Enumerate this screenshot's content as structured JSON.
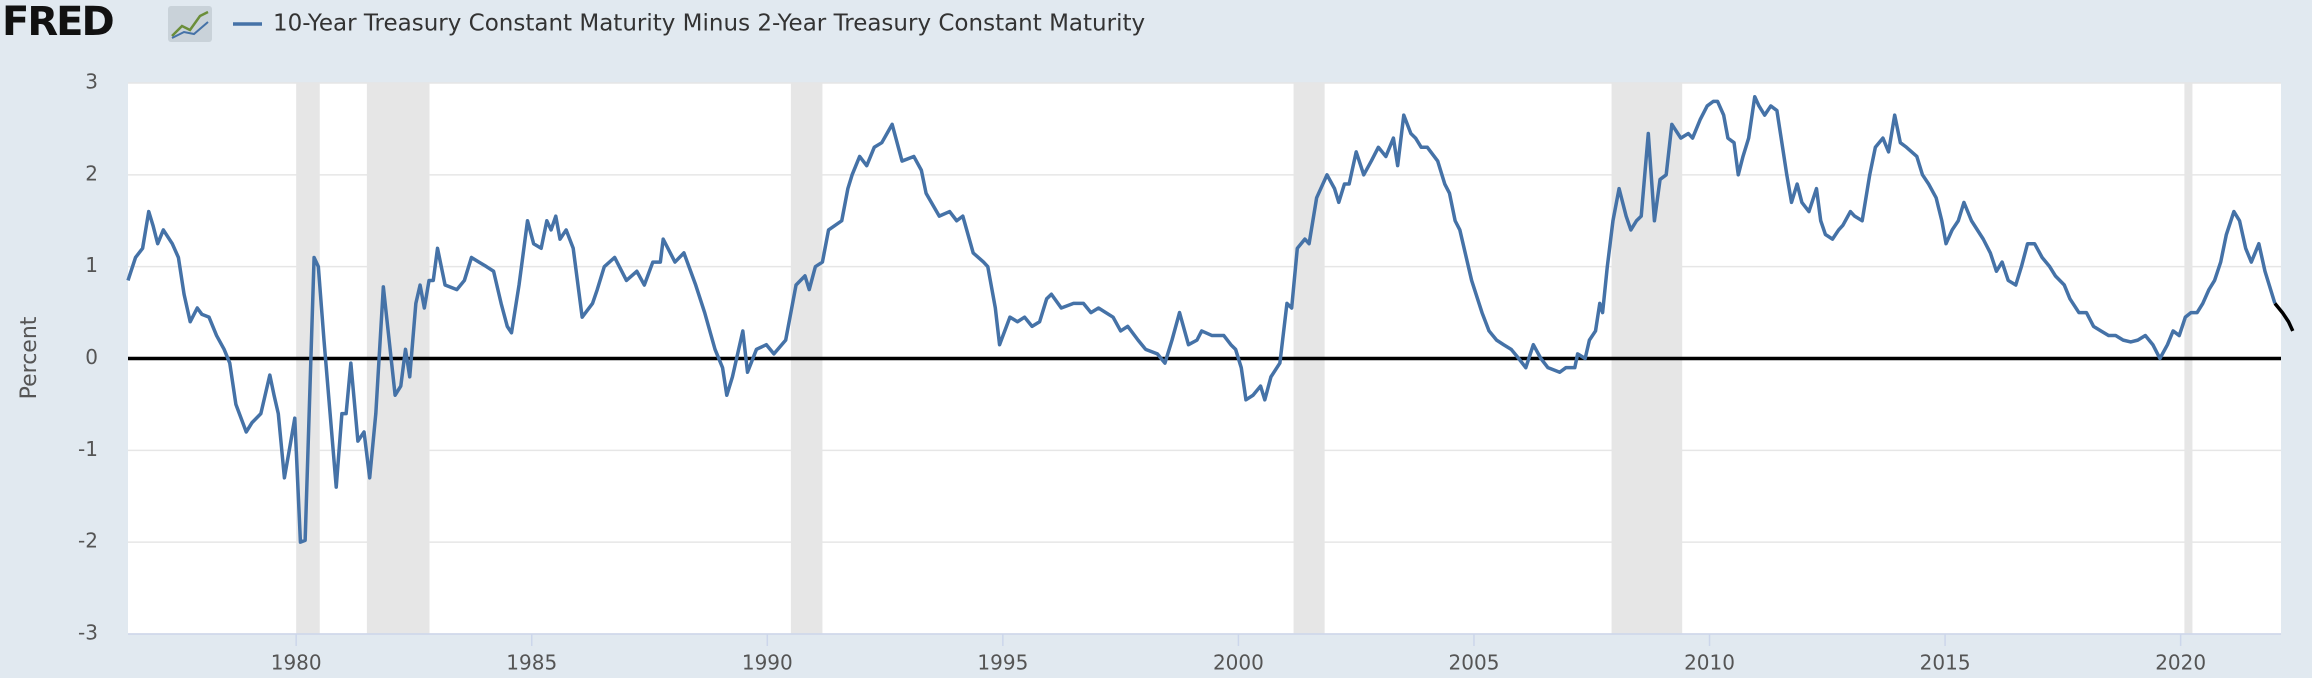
{
  "chart_data": {
    "type": "line",
    "logo": "FRED",
    "ylabel": "Percent",
    "xlim": [
      1976.43,
      2022.13
    ],
    "xticks": [
      1980,
      1985,
      1990,
      1995,
      2000,
      2005,
      2010,
      2015,
      2020
    ],
    "ylim": [
      -3,
      3
    ],
    "yticks": [
      -3,
      -2,
      -1,
      0,
      1,
      2,
      3
    ],
    "grid": true,
    "zero_line": true,
    "recessions": [
      [
        1980.0,
        1980.5
      ],
      [
        1981.5,
        1982.83
      ],
      [
        1990.5,
        1991.17
      ],
      [
        2001.17,
        2001.83
      ],
      [
        2007.92,
        2009.42
      ],
      [
        2020.08,
        2020.25
      ]
    ],
    "series": [
      {
        "name": "10-Year Treasury Constant Maturity Minus 2-Year Treasury Constant Maturity",
        "color": "#4572a7",
        "x": [
          1976.43,
          1976.59,
          1976.74,
          1976.87,
          1976.96,
          1977.06,
          1977.18,
          1977.37,
          1977.5,
          1977.62,
          1977.75,
          1977.9,
          1978.0,
          1978.15,
          1978.31,
          1978.47,
          1978.59,
          1978.72,
          1978.94,
          1979.06,
          1979.25,
          1979.44,
          1979.53,
          1979.62,
          1979.75,
          1979.87,
          1979.97,
          1980.09,
          1980.19,
          1980.38,
          1980.47,
          1980.59,
          1980.85,
          1980.97,
          1981.06,
          1981.16,
          1981.31,
          1981.44,
          1981.56,
          1981.69,
          1981.85,
          1982.1,
          1982.22,
          1982.32,
          1982.41,
          1982.54,
          1982.63,
          1982.72,
          1982.82,
          1982.91,
          1983.0,
          1983.16,
          1983.41,
          1983.57,
          1983.72,
          1983.88,
          1984.04,
          1984.19,
          1984.35,
          1984.48,
          1984.57,
          1984.73,
          1984.91,
          1985.04,
          1985.2,
          1985.32,
          1985.41,
          1985.51,
          1985.6,
          1985.73,
          1985.88,
          1986.07,
          1986.29,
          1986.39,
          1986.54,
          1986.76,
          1987.01,
          1987.23,
          1987.39,
          1987.57,
          1987.73,
          1987.79,
          1988.04,
          1988.23,
          1988.48,
          1988.67,
          1988.89,
          1989.05,
          1989.14,
          1989.26,
          1989.48,
          1989.58,
          1989.77,
          1989.98,
          1990.14,
          1990.39,
          1990.61,
          1990.8,
          1990.89,
          1991.02,
          1991.17,
          1991.3,
          1991.58,
          1991.71,
          1991.8,
          1991.96,
          1992.11,
          1992.27,
          1992.43,
          1992.65,
          1992.86,
          1993.11,
          1993.27,
          1993.37,
          1993.65,
          1993.87,
          1994.02,
          1994.15,
          1994.37,
          1994.59,
          1994.68,
          1994.84,
          1994.93,
          1995.15,
          1995.31,
          1995.46,
          1995.62,
          1995.78,
          1995.93,
          1996.03,
          1996.24,
          1996.5,
          1996.71,
          1996.87,
          1997.03,
          1997.34,
          1997.5,
          1997.65,
          1997.87,
          1998.03,
          1998.28,
          1998.44,
          1998.59,
          1998.75,
          1998.94,
          1999.12,
          1999.22,
          1999.44,
          1999.69,
          1999.84,
          1999.94,
          2000.06,
          2000.16,
          2000.31,
          2000.47,
          2000.56,
          2000.69,
          2000.88,
          2001.03,
          2001.13,
          2001.25,
          2001.41,
          2001.5,
          2001.66,
          2001.88,
          2002.04,
          2002.13,
          2002.25,
          2002.35,
          2002.5,
          2002.66,
          2002.82,
          2002.97,
          2003.13,
          2003.29,
          2003.38,
          2003.51,
          2003.66,
          2003.76,
          2003.88,
          2004.01,
          2004.23,
          2004.38,
          2004.48,
          2004.6,
          2004.7,
          2004.95,
          2005.17,
          2005.32,
          2005.48,
          2005.63,
          2005.79,
          2005.95,
          2006.1,
          2006.26,
          2006.42,
          2006.57,
          2006.82,
          2006.95,
          2007.14,
          2007.2,
          2007.36,
          2007.45,
          2007.58,
          2007.67,
          2007.73,
          2007.83,
          2007.95,
          2008.08,
          2008.23,
          2008.33,
          2008.45,
          2008.55,
          2008.7,
          2008.83,
          2008.95,
          2009.08,
          2009.2,
          2009.39,
          2009.55,
          2009.64,
          2009.8,
          2009.95,
          2010.08,
          2010.17,
          2010.3,
          2010.39,
          2010.52,
          2010.61,
          2010.71,
          2010.83,
          2010.96,
          2011.05,
          2011.17,
          2011.3,
          2011.43,
          2011.55,
          2011.64,
          2011.74,
          2011.86,
          2011.96,
          2012.11,
          2012.27,
          2012.36,
          2012.46,
          2012.61,
          2012.74,
          2012.83,
          2012.99,
          2013.08,
          2013.24,
          2013.4,
          2013.52,
          2013.68,
          2013.8,
          2013.93,
          2014.05,
          2014.18,
          2014.4,
          2014.52,
          2014.65,
          2014.81,
          2014.93,
          2015.02,
          2015.15,
          2015.28,
          2015.4,
          2015.56,
          2015.81,
          2015.96,
          2016.09,
          2016.21,
          2016.34,
          2016.5,
          2016.62,
          2016.75,
          2016.9,
          2017.06,
          2017.22,
          2017.34,
          2017.53,
          2017.65,
          2017.84,
          2018.0,
          2018.15,
          2018.31,
          2018.47,
          2018.62,
          2018.78,
          2018.94,
          2019.09,
          2019.25,
          2019.41,
          2019.56,
          2019.72,
          2019.84,
          2019.97,
          2020.1,
          2020.22,
          2020.35,
          2020.47,
          2020.6,
          2020.72,
          2020.85,
          2020.97,
          2021.13,
          2021.25,
          2021.38,
          2021.5,
          2021.66,
          2021.79,
          2021.91,
          2022.0
        ],
        "values": [
          0.85,
          1.1,
          1.2,
          1.6,
          1.45,
          1.25,
          1.4,
          1.25,
          1.1,
          0.7,
          0.4,
          0.55,
          0.48,
          0.45,
          0.25,
          0.1,
          -0.05,
          -0.5,
          -0.8,
          -0.7,
          -0.6,
          -0.18,
          -0.4,
          -0.6,
          -1.3,
          -0.95,
          -0.65,
          -2.0,
          -1.98,
          1.1,
          1.0,
          0.2,
          -1.4,
          -0.6,
          -0.6,
          -0.05,
          -0.9,
          -0.8,
          -1.3,
          -0.6,
          0.78,
          -0.4,
          -0.3,
          0.1,
          -0.2,
          0.6,
          0.8,
          0.55,
          0.85,
          0.85,
          1.2,
          0.8,
          0.75,
          0.85,
          1.1,
          1.05,
          1.0,
          0.95,
          0.6,
          0.35,
          0.28,
          0.8,
          1.5,
          1.25,
          1.2,
          1.5,
          1.4,
          1.55,
          1.3,
          1.4,
          1.2,
          0.45,
          0.6,
          0.75,
          1.0,
          1.1,
          0.85,
          0.95,
          0.8,
          1.05,
          1.05,
          1.3,
          1.05,
          1.15,
          0.8,
          0.5,
          0.1,
          -0.1,
          -0.4,
          -0.2,
          0.3,
          -0.15,
          0.1,
          0.15,
          0.05,
          0.2,
          0.8,
          0.9,
          0.75,
          1.0,
          1.05,
          1.4,
          1.5,
          1.85,
          2.0,
          2.2,
          2.1,
          2.3,
          2.35,
          2.55,
          2.15,
          2.2,
          2.05,
          1.8,
          1.55,
          1.6,
          1.5,
          1.55,
          1.15,
          1.05,
          1.0,
          0.55,
          0.15,
          0.45,
          0.4,
          0.45,
          0.35,
          0.4,
          0.65,
          0.7,
          0.55,
          0.6,
          0.6,
          0.5,
          0.55,
          0.45,
          0.3,
          0.35,
          0.2,
          0.1,
          0.05,
          -0.05,
          0.2,
          0.5,
          0.15,
          0.2,
          0.3,
          0.25,
          0.25,
          0.15,
          0.1,
          -0.1,
          -0.45,
          -0.4,
          -0.3,
          -0.45,
          -0.2,
          -0.05,
          0.6,
          0.55,
          1.2,
          1.3,
          1.25,
          1.75,
          2.0,
          1.85,
          1.7,
          1.9,
          1.9,
          2.25,
          2.0,
          2.15,
          2.3,
          2.2,
          2.4,
          2.1,
          2.65,
          2.45,
          2.4,
          2.3,
          2.3,
          2.15,
          1.9,
          1.8,
          1.5,
          1.4,
          0.85,
          0.5,
          0.3,
          0.2,
          0.15,
          0.1,
          0.0,
          -0.1,
          0.15,
          0.0,
          -0.1,
          -0.15,
          -0.1,
          -0.1,
          0.05,
          0.0,
          0.2,
          0.3,
          0.6,
          0.5,
          1.0,
          1.5,
          1.85,
          1.55,
          1.4,
          1.5,
          1.55,
          2.45,
          1.5,
          1.95,
          2.0,
          2.55,
          2.4,
          2.45,
          2.4,
          2.6,
          2.75,
          2.8,
          2.8,
          2.65,
          2.4,
          2.35,
          2.0,
          2.2,
          2.4,
          2.85,
          2.75,
          2.65,
          2.75,
          2.7,
          2.3,
          2.0,
          1.7,
          1.9,
          1.7,
          1.6,
          1.85,
          1.5,
          1.35,
          1.3,
          1.4,
          1.45,
          1.6,
          1.55,
          1.5,
          2.0,
          2.3,
          2.4,
          2.25,
          2.65,
          2.35,
          2.3,
          2.2,
          2.0,
          1.9,
          1.75,
          1.5,
          1.25,
          1.4,
          1.5,
          1.7,
          1.5,
          1.3,
          1.15,
          0.95,
          1.05,
          0.85,
          0.8,
          1.0,
          1.25,
          1.25,
          1.1,
          1.0,
          0.9,
          0.8,
          0.65,
          0.5,
          0.5,
          0.35,
          0.3,
          0.25,
          0.25,
          0.2,
          0.18,
          0.2,
          0.25,
          0.15,
          0.0,
          0.15,
          0.3,
          0.25,
          0.45,
          0.5,
          0.5,
          0.6,
          0.75,
          0.85,
          1.05,
          1.35,
          1.6,
          1.5,
          1.2,
          1.05,
          1.25,
          0.95,
          0.75,
          0.6
        ]
      },
      {
        "color": "#000000",
        "x": [
          2022.0,
          2022.16,
          2022.29,
          2022.38
        ],
        "values": [
          0.6,
          0.5,
          0.4,
          0.3
        ]
      }
    ]
  }
}
